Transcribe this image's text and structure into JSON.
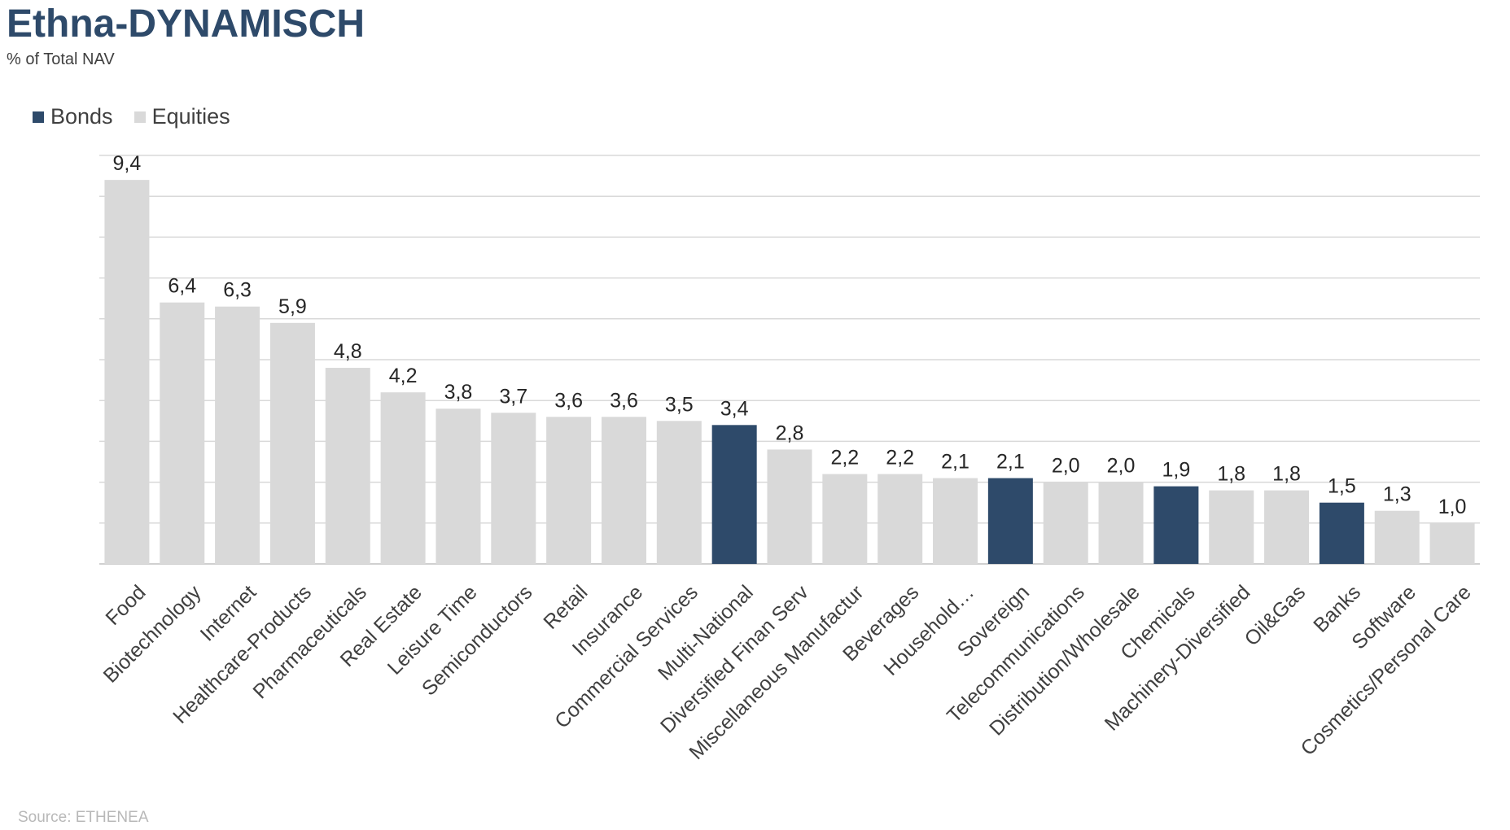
{
  "header": {
    "title": "Ethna-DYNAMISCH",
    "subtitle": "% of Total NAV"
  },
  "footer": {
    "source": "Source: ETHENEA"
  },
  "colors": {
    "bonds": "#2e4a6a",
    "equities": "#d9d9d9",
    "title": "#2e4a6a",
    "gridline": "#d9d9d9"
  },
  "chart_data": {
    "type": "bar",
    "title": "Ethna-DYNAMISCH",
    "subtitle": "% of Total NAV",
    "xlabel": "",
    "ylabel": "",
    "ylim": [
      0,
      10
    ],
    "grid": true,
    "legend_position": "top-left",
    "categories": [
      "Food",
      "Biotechnology",
      "Internet",
      "Healthcare-Products",
      "Pharmaceuticals",
      "Real Estate",
      "Leisure Time",
      "Semiconductors",
      "Retail",
      "Insurance",
      "Commercial Services",
      "Multi-National",
      "Diversified Finan Serv",
      "Miscellaneous Manufactur",
      "Beverages",
      "Household…",
      "Sovereign",
      "Telecommunications",
      "Distribution/Wholesale",
      "Chemicals",
      "Machinery-Diversified",
      "Oil&Gas",
      "Banks",
      "Software",
      "Cosmetics/Personal Care"
    ],
    "values": [
      9.4,
      6.4,
      6.3,
      5.9,
      4.8,
      4.2,
      3.8,
      3.7,
      3.6,
      3.6,
      3.5,
      3.4,
      2.8,
      2.2,
      2.2,
      2.1,
      2.1,
      2.0,
      2.0,
      1.9,
      1.8,
      1.8,
      1.5,
      1.3,
      1.0
    ],
    "value_labels": [
      "9,4",
      "6,4",
      "6,3",
      "5,9",
      "4,8",
      "4,2",
      "3,8",
      "3,7",
      "3,6",
      "3,6",
      "3,5",
      "3,4",
      "2,8",
      "2,2",
      "2,2",
      "2,1",
      "2,1",
      "2,0",
      "2,0",
      "1,9",
      "1,8",
      "1,8",
      "1,5",
      "1,3",
      "1,0"
    ],
    "series_of_bar": [
      "Equities",
      "Equities",
      "Equities",
      "Equities",
      "Equities",
      "Equities",
      "Equities",
      "Equities",
      "Equities",
      "Equities",
      "Equities",
      "Bonds",
      "Equities",
      "Equities",
      "Equities",
      "Equities",
      "Bonds",
      "Equities",
      "Equities",
      "Bonds",
      "Equities",
      "Equities",
      "Bonds",
      "Equities",
      "Equities"
    ],
    "series": [
      {
        "name": "Bonds",
        "color": "#2e4a6a"
      },
      {
        "name": "Equities",
        "color": "#d9d9d9"
      }
    ]
  }
}
